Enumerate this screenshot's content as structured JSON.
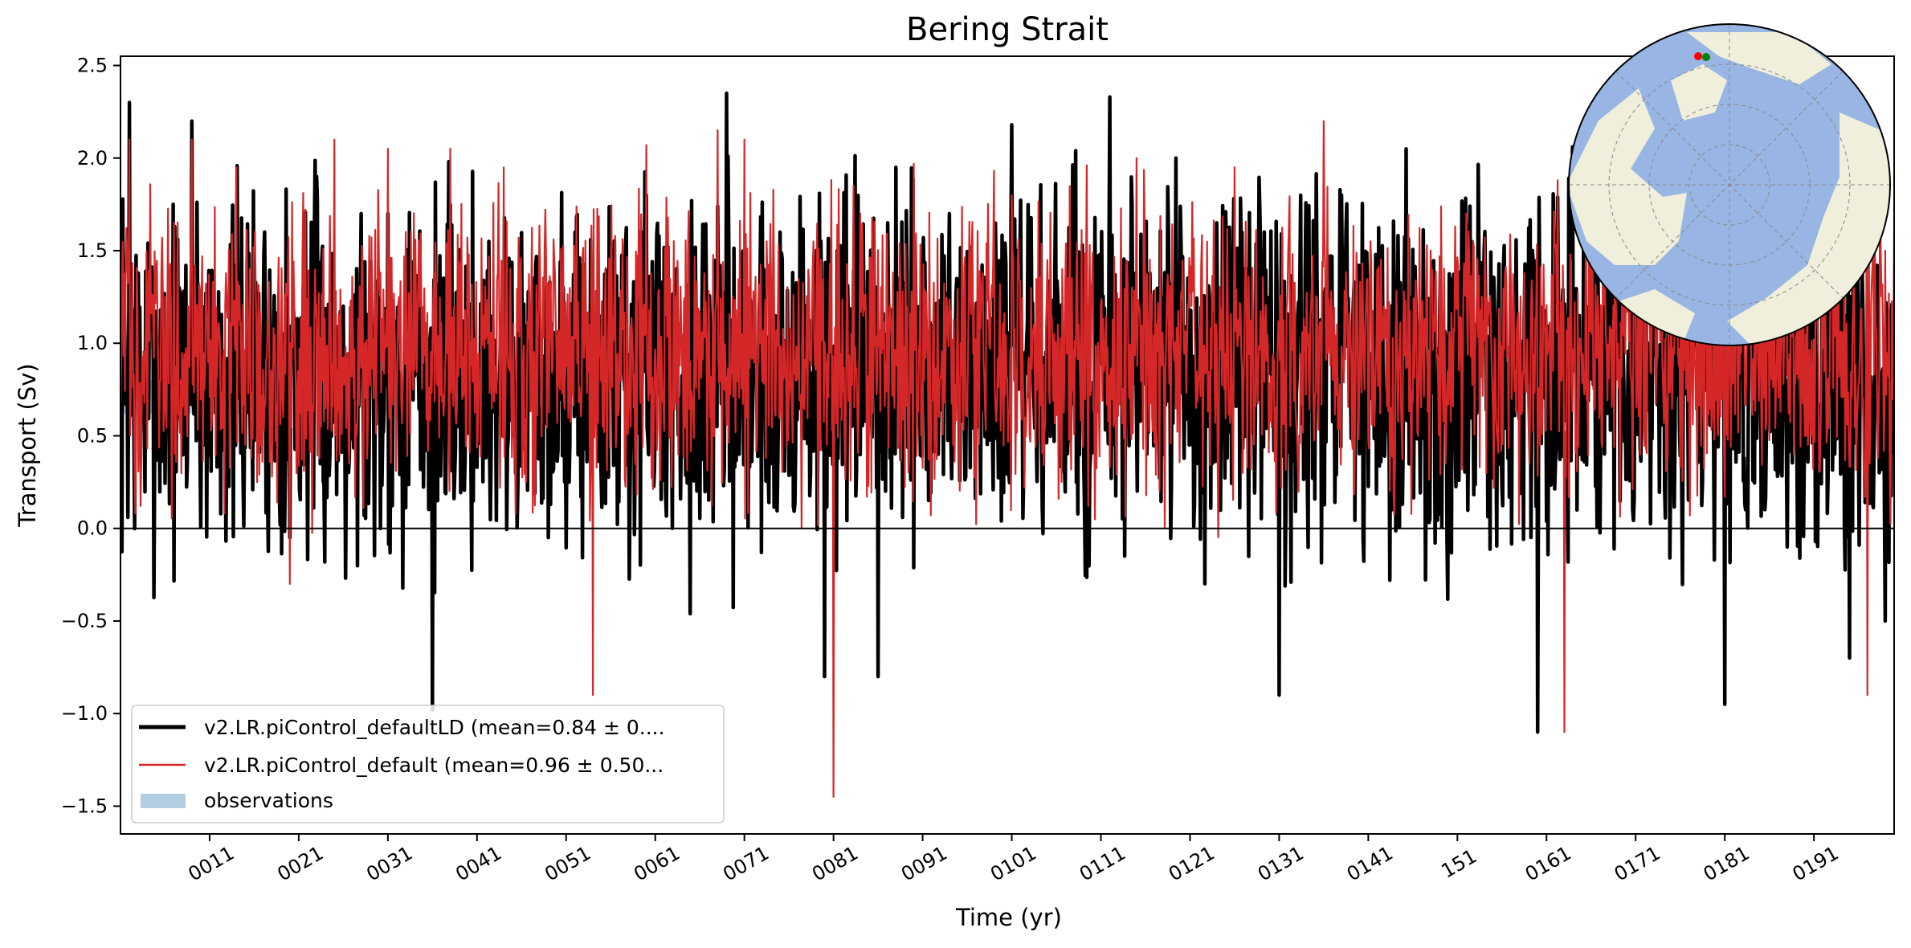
{
  "chart_data": {
    "type": "line",
    "title": "Bering Strait",
    "xlabel": "Time (yr)",
    "ylabel": "Transport (Sv)",
    "xlim": [
      1,
      200
    ],
    "ylim": [
      -1.65,
      2.55
    ],
    "yticks": [
      -1.5,
      -1.0,
      -0.5,
      0.0,
      0.5,
      1.0,
      1.5,
      2.0,
      2.5
    ],
    "ytick_labels": [
      "−1.5",
      "−1.0",
      "−0.5",
      "0.0",
      "0.5",
      "1.0",
      "1.5",
      "2.0",
      "2.5"
    ],
    "xticks": [
      11,
      21,
      31,
      41,
      51,
      61,
      71,
      81,
      91,
      101,
      111,
      121,
      131,
      141,
      151,
      161,
      171,
      181,
      191
    ],
    "xtick_labels": [
      "0011",
      "0021",
      "0031",
      "0041",
      "0051",
      "0061",
      "0071",
      "0081",
      "0091",
      "0101",
      "0111",
      "0121",
      "0131",
      "0141",
      "151",
      "0161",
      "0171",
      "0181",
      "0191"
    ],
    "hline": 0.0,
    "observations": {
      "label": "observations",
      "x_range": [
        1,
        19
      ],
      "y_range": [
        0.62,
        0.8
      ],
      "color": "#b3cde3"
    },
    "series": [
      {
        "name": "v2.LR.piControl_defaultLD (mean=0.84 ± 0....",
        "color": "#000000",
        "mean": 0.84,
        "samples_per_year": 12,
        "x": [
          2,
          9,
          17,
          20,
          23,
          26,
          28,
          31,
          36,
          45,
          52,
          60,
          69,
          75,
          80,
          86,
          88,
          94,
          101,
          112,
          118,
          124,
          131,
          138,
          147,
          160,
          169,
          181,
          186,
          195,
          199
        ],
        "y": [
          2.3,
          2.2,
          1.0,
          -0.05,
          1.9,
          1.2,
          1.7,
          1.7,
          -0.98,
          0.5,
          1.6,
          1.8,
          2.35,
          1.6,
          -0.8,
          -0.8,
          1.95,
          1.7,
          2.18,
          2.33,
          0.4,
          1.65,
          -0.9,
          1.8,
          0.6,
          -1.1,
          1.7,
          -0.95,
          1.7,
          -0.7,
          -0.5
        ]
      },
      {
        "name": "v2.LR.piControl_default (mean=0.96 ± 0.50...",
        "color": "#d62728",
        "mean": 0.96,
        "samples_per_year": 12,
        "x": [
          2,
          9,
          14,
          20,
          25,
          31,
          38,
          44,
          54,
          60,
          68,
          71,
          81,
          84,
          90,
          101,
          115,
          126,
          136,
          148,
          152,
          163,
          170,
          178,
          185,
          193,
          197,
          199
        ],
        "y": [
          2.1,
          2.1,
          1.95,
          -0.3,
          2.1,
          2.05,
          2.05,
          1.95,
          -0.9,
          2.07,
          2.15,
          2.1,
          -1.45,
          1.7,
          1.97,
          1.8,
          2.0,
          1.95,
          2.2,
          1.5,
          1.7,
          -1.1,
          1.98,
          1.7,
          1.6,
          1.5,
          -0.9,
          1.5
        ]
      }
    ],
    "legend": {
      "position": "lower-left",
      "entries": [
        {
          "label": "v2.LR.piControl_defaultLD (mean=0.84 ± 0....",
          "style": "line",
          "color": "#000000"
        },
        {
          "label": "v2.LR.piControl_default (mean=0.96 ± 0.50...",
          "style": "line",
          "color": "#d62728"
        },
        {
          "label": "observations",
          "style": "patch",
          "color": "#b3cde3"
        }
      ]
    },
    "inset_map": {
      "projection": "north-polar-stereographic",
      "position": "top-right",
      "ocean_color": "#98b5e3",
      "land_color": "#efefdb",
      "markers": [
        {
          "name": "section-start",
          "color": "#ff0000"
        },
        {
          "name": "section-end",
          "color": "#008000"
        }
      ]
    }
  }
}
